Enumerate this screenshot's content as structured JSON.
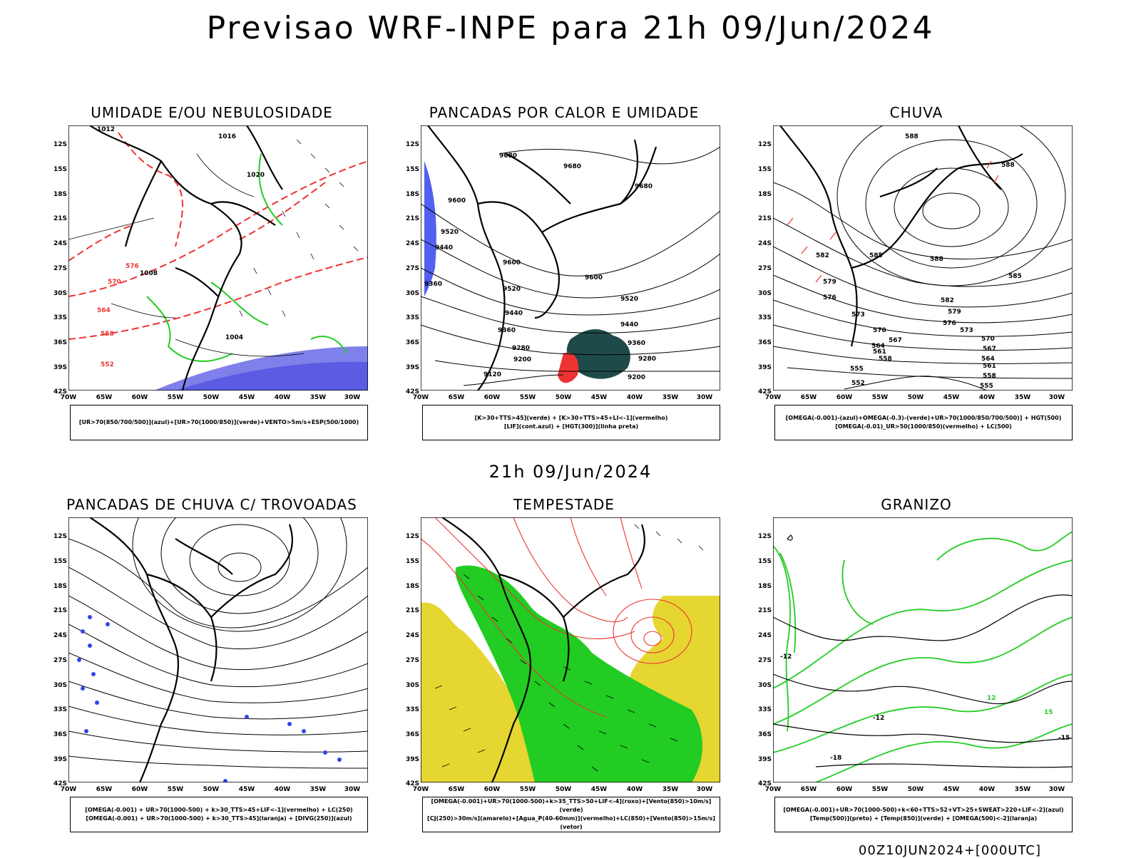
{
  "header": {
    "title": "Previsao WRF-INPE  para 21h 09/Jun/2024"
  },
  "middle": {
    "title": "21h 09/Jun/2024"
  },
  "footer": {
    "stamp": "00Z10JUN2024+[000UTC]"
  },
  "axes": {
    "lat_ticks": [
      "12S",
      "15S",
      "18S",
      "21S",
      "24S",
      "27S",
      "30S",
      "33S",
      "36S",
      "39S",
      "42S"
    ],
    "lon_ticks": [
      "70W",
      "65W",
      "60W",
      "55W",
      "50W",
      "45W",
      "40W",
      "35W",
      "30W"
    ]
  },
  "panels": [
    {
      "title": "UMIDADE E/OU NEBULOSIDADE",
      "legend": [
        "[UR>70(850/700/500)](azul)+[UR>70(1000/850)](verde)+VENTO>5m/s+ESP(500/1000)"
      ],
      "labels": [
        "1012",
        "1016",
        "1020",
        "1008",
        "1004",
        "576",
        "570",
        "564",
        "558",
        "552"
      ]
    },
    {
      "title": "PANCADAS POR CALOR E UMIDADE",
      "legend": [
        "[K>30+TTS>45](verde) + [K>30+TTS>45+LI<-1](vermelho)",
        "[LIF](cont.azul) + [HGT(300)](linha preta)"
      ],
      "labels": [
        "9680",
        "9600",
        "9520",
        "9440",
        "9360",
        "9280",
        "9200",
        "9120"
      ]
    },
    {
      "title": "CHUVA",
      "legend": [
        "[OMEGA(-0.001)-(azul)+OMEGA(-0.3)-(verde)+UR>70(1000/850/700/500)] + HGT(500)",
        "[OMEGA(-0.01)_UR>50(1000/850)(vermelho) + LC(500)"
      ],
      "labels": [
        "588",
        "585",
        "582",
        "579",
        "576",
        "573",
        "570",
        "567",
        "564",
        "561",
        "558",
        "555",
        "552"
      ]
    },
    {
      "title": "PANCADAS DE CHUVA C/ TROVOADAS",
      "legend": [
        "[OMEGA(-0.001) + UR>70(1000-500) + k>30_TTS>45+LIF<-1](vermelho) + LC(250)",
        "[OMEGA(-0.001) + UR>70(1000-500) + k>30_TTS>45](laranja) + [DIVG(250)](azul)"
      ],
      "labels": []
    },
    {
      "title": "TEMPESTADE",
      "legend": [
        "[OMEGA(-0.001)+UR>70(1000-500)+k>35_TTS>50+LIF<-4](roxo)+[Vento(850)>10m/s](verde)",
        "[CJ(250)>30m/s](amarelo)+[Agua_P(40-60mm)](vermelho)+LC(850)+[Vento(850)>15m/s](vetor)"
      ],
      "labels": []
    },
    {
      "title": "GRANIZO",
      "legend": [
        "[OMEGA(-0.001)+UR>70(1000-500)+k<60+TTS>52+VT>25+SWEAT>220+LIF<-2](azul)",
        "[Temp(500)](preto) + [Temp(850)](verde) + [OMEGA(500)<-2](laranja)"
      ],
      "labels": [
        "-12",
        "-15",
        "-18",
        "12",
        "15"
      ]
    }
  ],
  "colors": {
    "green": "#22cc22",
    "red": "#ee3333",
    "blue": "#3344ee",
    "yellow": "#e6d632",
    "darkteal": "#1f4a4a"
  }
}
